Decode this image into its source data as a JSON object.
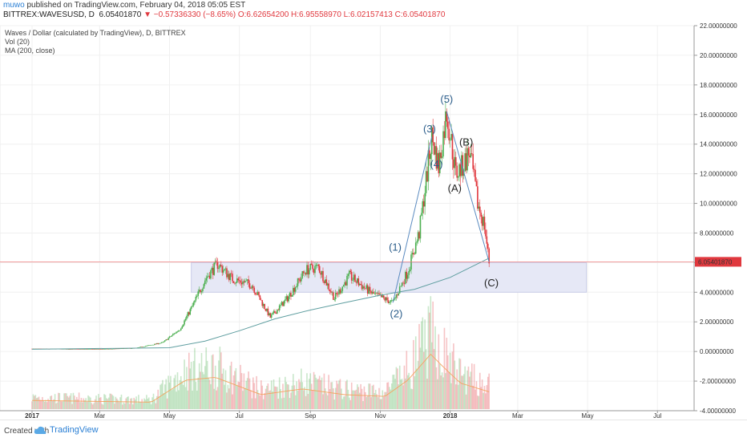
{
  "header": {
    "user": "muwo",
    "published": "published on TradingView.com, February 04, 2018 05:05 EST",
    "symbol": "BITTREX:WAVESUSD, D",
    "last": "6.05401870",
    "change": "−0.57336330 (−8.65%)",
    "ohlc": "O:6.62654200 H:6.95558970 L:6.02157413 C:6.05401870"
  },
  "footer": {
    "created": "Created with",
    "brand": "TradingView"
  },
  "colors": {
    "up": "#4caf50",
    "down": "#e0383e",
    "ma": "#5f9ea0",
    "wave_lines": "#5b8bc0",
    "wave_labels": "#2a5c8a",
    "range_fill": "#e6e8f6",
    "price_line": "#f08080",
    "vol_ma": "#f4a460"
  },
  "chart_data": {
    "type": "candlestick",
    "title": "Waves / Dollar (calculated by TradingView), D, BITTREX",
    "legend": [
      "Vol (20)",
      "MA (200, close)"
    ],
    "legend_position": "top-left",
    "y_range": [
      -4,
      22
    ],
    "y_ticks": [
      "22.00000000",
      "20.00000000",
      "18.00000000",
      "16.00000000",
      "14.00000000",
      "12.00000000",
      "10.00000000",
      "8.00000000",
      "6.00000000",
      "4.00000000",
      "2.00000000",
      "0.00000000",
      "-2.00000000",
      "-4.00000000"
    ],
    "x_ticks": [
      "2017",
      "Mar",
      "May",
      "Jul",
      "Sep",
      "Nov",
      "2018",
      "Mar",
      "May",
      "Jul"
    ],
    "last_price_label": "6.05401870",
    "last_price": 6.054,
    "price_path": [
      {
        "x": "2017-01-01",
        "y": 0.18
      },
      {
        "x": "2017-02-01",
        "y": 0.16
      },
      {
        "x": "2017-03-01",
        "y": 0.15
      },
      {
        "x": "2017-04-01",
        "y": 0.22
      },
      {
        "x": "2017-04-25",
        "y": 0.6
      },
      {
        "x": "2017-05-10",
        "y": 1.5
      },
      {
        "x": "2017-05-22",
        "y": 3.2
      },
      {
        "x": "2017-06-02",
        "y": 5.0
      },
      {
        "x": "2017-06-12",
        "y": 5.9
      },
      {
        "x": "2017-06-25",
        "y": 4.9
      },
      {
        "x": "2017-07-12",
        "y": 4.5
      },
      {
        "x": "2017-07-28",
        "y": 2.3
      },
      {
        "x": "2017-08-12",
        "y": 3.6
      },
      {
        "x": "2017-08-28",
        "y": 5.5
      },
      {
        "x": "2017-09-08",
        "y": 5.7
      },
      {
        "x": "2017-09-22",
        "y": 3.6
      },
      {
        "x": "2017-10-05",
        "y": 5.1
      },
      {
        "x": "2017-10-25",
        "y": 3.9
      },
      {
        "x": "2017-11-12",
        "y": 3.3
      },
      {
        "x": "2017-11-25",
        "y": 5.4
      },
      {
        "x": "2017-12-05",
        "y": 8.0
      },
      {
        "x": "2017-12-16",
        "y": 14.5
      },
      {
        "x": "2017-12-22",
        "y": 12.5
      },
      {
        "x": "2017-12-29",
        "y": 16.2
      },
      {
        "x": "2018-01-06",
        "y": 12.0
      },
      {
        "x": "2018-01-12",
        "y": 12.5
      },
      {
        "x": "2018-01-18",
        "y": 13.5
      },
      {
        "x": "2018-01-25",
        "y": 10.0
      },
      {
        "x": "2018-01-31",
        "y": 8.5
      },
      {
        "x": "2018-02-04",
        "y": 6.05
      }
    ],
    "ma200_path": [
      {
        "x": "2017-01-01",
        "y": 0.15
      },
      {
        "x": "2017-05-01",
        "y": 0.25
      },
      {
        "x": "2017-06-01",
        "y": 0.7
      },
      {
        "x": "2017-07-01",
        "y": 1.4
      },
      {
        "x": "2017-08-01",
        "y": 2.2
      },
      {
        "x": "2017-09-01",
        "y": 2.8
      },
      {
        "x": "2017-10-01",
        "y": 3.3
      },
      {
        "x": "2017-11-01",
        "y": 3.8
      },
      {
        "x": "2017-12-01",
        "y": 4.2
      },
      {
        "x": "2018-01-01",
        "y": 5.0
      },
      {
        "x": "2018-02-04",
        "y": 6.3
      }
    ],
    "volume_profile": [
      {
        "x": "2017-01-01",
        "v": 0.15
      },
      {
        "x": "2017-04-15",
        "v": 0.12
      },
      {
        "x": "2017-05-15",
        "v": 0.5
      },
      {
        "x": "2017-06-10",
        "v": 0.55
      },
      {
        "x": "2017-07-20",
        "v": 0.25
      },
      {
        "x": "2017-08-25",
        "v": 0.35
      },
      {
        "x": "2017-10-01",
        "v": 0.25
      },
      {
        "x": "2017-11-05",
        "v": 0.22
      },
      {
        "x": "2017-11-25",
        "v": 0.5
      },
      {
        "x": "2017-12-15",
        "v": 0.95
      },
      {
        "x": "2017-12-25",
        "v": 0.75
      },
      {
        "x": "2018-01-10",
        "v": 0.45
      },
      {
        "x": "2018-02-04",
        "v": 0.3
      }
    ],
    "support_zone": {
      "from": "2017-05-20",
      "to": "2018-04-30",
      "low": 4.0,
      "high": 6.0
    },
    "wave_lines": [
      [
        {
          "x": "2017-11-12",
          "y": 3.3
        },
        {
          "x": "2017-12-16",
          "y": 14.5
        }
      ],
      [
        {
          "x": "2017-12-29",
          "y": 16.2
        },
        {
          "x": "2018-02-04",
          "y": 6.05
        }
      ]
    ],
    "wave_labels": [
      {
        "text": "(1)",
        "x": "2017-11-14",
        "y": 6.8,
        "color": "#2a5c8a"
      },
      {
        "text": "(2)",
        "x": "2017-11-15",
        "y": 2.3,
        "color": "#2a5c8a"
      },
      {
        "text": "(3)",
        "x": "2017-12-14",
        "y": 14.8,
        "color": "#2a5c8a"
      },
      {
        "text": "(4)",
        "x": "2017-12-20",
        "y": 12.4,
        "color": "#2a5c8a"
      },
      {
        "text": "(5)",
        "x": "2017-12-29",
        "y": 16.8,
        "color": "#2a5c8a"
      },
      {
        "text": "(A)",
        "x": "2018-01-05",
        "y": 10.8,
        "color": "#222222"
      },
      {
        "text": "(B)",
        "x": "2018-01-15",
        "y": 13.9,
        "color": "#222222"
      },
      {
        "text": "(C)",
        "x": "2018-02-06",
        "y": 4.4,
        "color": "#222222"
      }
    ]
  }
}
